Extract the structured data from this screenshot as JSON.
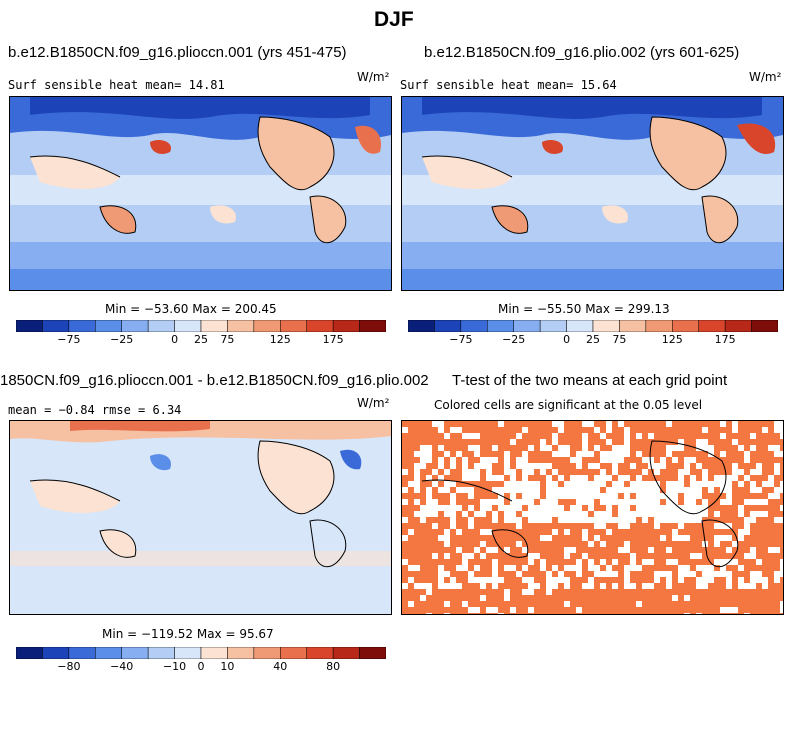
{
  "figure": {
    "title": "DJF",
    "units_label": "W/m²"
  },
  "panels": [
    {
      "id": "p1",
      "title": "b.e12.B1850CN.f09_g16.plioccn.001 (yrs 451-475)",
      "subtitle": "Surf sensible heat   mean=  14.81",
      "minmax": "Min = −53.60 Max = 200.45"
    },
    {
      "id": "p2",
      "title": "b.e12.B1850CN.f09_g16.plio.002 (yrs 601-625)",
      "subtitle": "Surf sensible heat   mean=  15.64",
      "minmax": "Min = −55.50 Max = 299.13"
    },
    {
      "id": "p3",
      "title": "1850CN.f09_g16.plioccn.001 - b.e12.B1850CN.f09_g16.plio.002",
      "subtitle": "mean =  −0.84    rmse =   6.34",
      "minmax": "Min = −119.52 Max = 95.67"
    },
    {
      "id": "p4",
      "title": "T-test of the two means at each grid point",
      "subtitle": "Colored cells are significant at the 0.05 level"
    }
  ],
  "chart_data": [
    {
      "type": "heatmap",
      "title": "b.e12.B1850CN.f09_g16.plioccn.001 (yrs 451-475)",
      "variable": "Surf sensible heat",
      "units": "W/m²",
      "mean": 14.81,
      "min": -53.6,
      "max": 200.45,
      "colorbar_tick_labels": [
        "-75",
        "-25",
        "0",
        "25",
        "75",
        "125",
        "175"
      ],
      "colorbar_colors": [
        "#0a1f7a",
        "#1c44b8",
        "#3a6ad8",
        "#5b8ee8",
        "#86aef0",
        "#b3cdf5",
        "#d8e6fa",
        "#fbe2d2",
        "#f6c0a2",
        "#f09a75",
        "#e8704d",
        "#d9452a",
        "#b72818",
        "#7e0c08"
      ]
    },
    {
      "type": "heatmap",
      "title": "b.e12.B1850CN.f09_g16.plio.002 (yrs 601-625)",
      "variable": "Surf sensible heat",
      "units": "W/m²",
      "mean": 15.64,
      "min": -55.5,
      "max": 299.13,
      "colorbar_tick_labels": [
        "-75",
        "-25",
        "0",
        "25",
        "75",
        "125",
        "175"
      ],
      "colorbar_colors": [
        "#0a1f7a",
        "#1c44b8",
        "#3a6ad8",
        "#5b8ee8",
        "#86aef0",
        "#b3cdf5",
        "#d8e6fa",
        "#fbe2d2",
        "#f6c0a2",
        "#f09a75",
        "#e8704d",
        "#d9452a",
        "#b72818",
        "#7e0c08"
      ]
    },
    {
      "type": "heatmap",
      "title": "1850CN.f09_g16.plioccn.001 - b.e12.B1850CN.f09_g16.plio.002",
      "units": "W/m²",
      "mean": -0.84,
      "rmse": 6.34,
      "min": -119.52,
      "max": 95.67,
      "colorbar_tick_labels": [
        "-80",
        "-40",
        "-10",
        "0",
        "10",
        "40",
        "80"
      ],
      "colorbar_colors": [
        "#0a1f7a",
        "#1c44b8",
        "#3a6ad8",
        "#5b8ee8",
        "#86aef0",
        "#b3cdf5",
        "#d8e6fa",
        "#fbe2d2",
        "#f6c0a2",
        "#f09a75",
        "#e8704d",
        "#d9452a",
        "#b72818",
        "#7e0c08"
      ]
    },
    {
      "type": "heatmap",
      "title": "T-test of the two means at each grid point",
      "significance_level": 0.05,
      "significant_color": "#f47640"
    }
  ]
}
